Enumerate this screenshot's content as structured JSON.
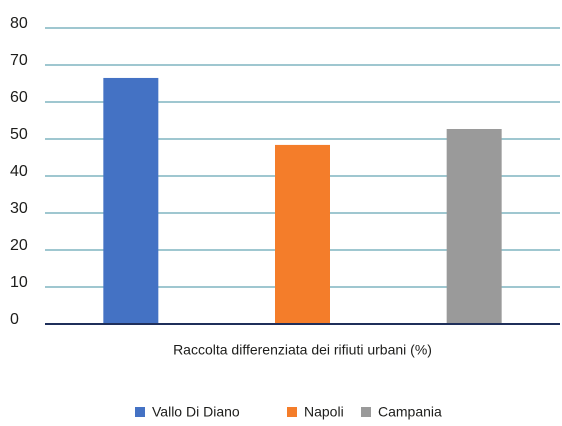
{
  "chart_data": {
    "type": "bar",
    "categories": [
      "Raccolta differenziata dei rifiuti urbani (%)"
    ],
    "series": [
      {
        "name": "Vallo Di Diano",
        "color": "#4472c4",
        "values": [
          66.5
        ]
      },
      {
        "name": "Napoli",
        "color": "#f47d2a",
        "values": [
          48.4
        ]
      },
      {
        "name": "Campania",
        "color": "#9a9a9a",
        "values": [
          52.7
        ]
      }
    ],
    "ylim": [
      0,
      80
    ],
    "yticks": [
      0,
      10,
      20,
      30,
      40,
      50,
      60,
      70,
      80
    ],
    "grid": true,
    "legend": "bottom"
  }
}
